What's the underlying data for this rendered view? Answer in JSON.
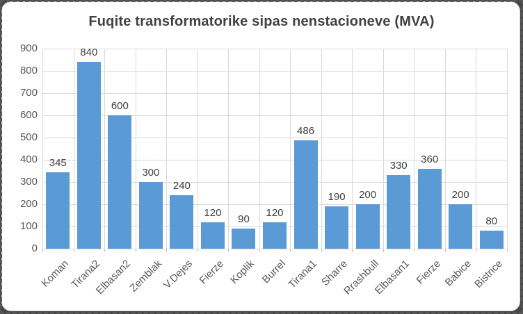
{
  "chart_data": {
    "type": "bar",
    "title": "Fuqite transformatorike sipas nenstacioneve (MVA)",
    "categories": [
      "Koman",
      "Tirana2",
      "Elbasan2",
      "Zemblak",
      "V.Dejes",
      "Fierze",
      "Koplik",
      "Burrel",
      "Tirana1",
      "Sharre",
      "Rrashbull",
      "Elbasan1",
      "Fierze",
      "Babice",
      "Bistrice"
    ],
    "values": [
      345,
      840,
      600,
      300,
      240,
      120,
      90,
      120,
      486,
      190,
      200,
      330,
      360,
      200,
      80
    ],
    "xlabel": "",
    "ylabel": "",
    "ylim": [
      0,
      900
    ],
    "ytick_step": 100,
    "grid": true,
    "vertical_gridlines": true,
    "legend": "none",
    "data_labels": true,
    "bar_color": "#5b9bd5",
    "gridline_color": "#d9d9d9",
    "tick_mark_color": "#bfbfbf",
    "axis_text_color": "#595959",
    "data_label_color": "#404040",
    "title_color": "#404040"
  },
  "frame": {
    "background_color": "#474747",
    "chart_background": "#ffffff",
    "selection_border_style": "marching-ants-dashed"
  }
}
